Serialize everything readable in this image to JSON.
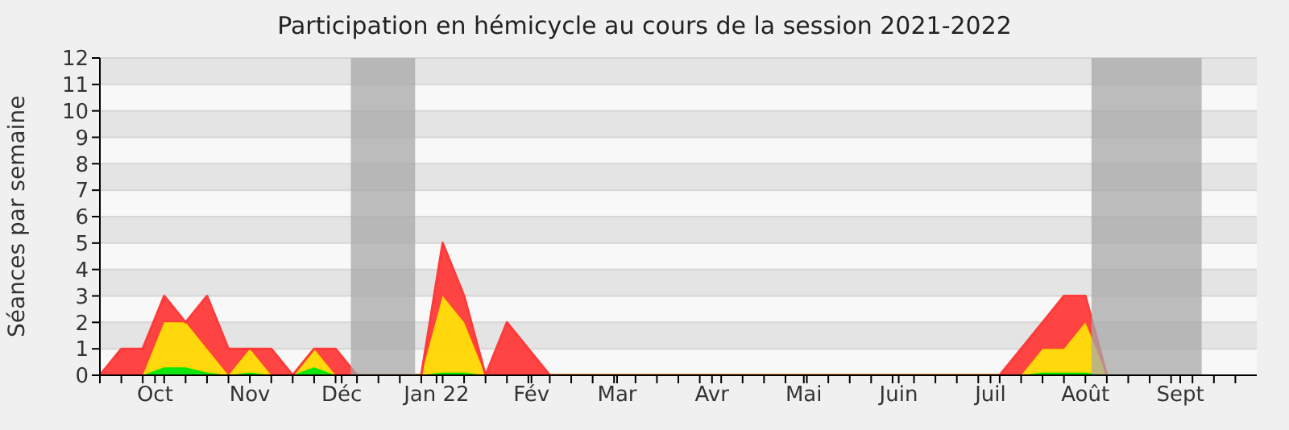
{
  "chart_data": {
    "type": "area",
    "title": "Participation en hémicycle au cours de la session 2021-2022",
    "ylabel": "Séances par semaine",
    "stacked": true,
    "grid": "y",
    "x": [
      "2021-09-13",
      "2021-09-20",
      "2021-09-27",
      "2021-10-04",
      "2021-10-11",
      "2021-10-18",
      "2021-10-25",
      "2021-11-01",
      "2021-11-08",
      "2021-11-15",
      "2021-11-22",
      "2021-11-29",
      "2021-12-06",
      "2021-12-27",
      "2022-01-03",
      "2022-01-10",
      "2022-01-17",
      "2022-01-24",
      "2022-01-31",
      "2022-02-07",
      "2022-07-04",
      "2022-07-11",
      "2022-07-18",
      "2022-07-25",
      "2022-08-01",
      "2022-08-08"
    ],
    "series": [
      {
        "color": "#00e600",
        "values": [
          0,
          0,
          0,
          0.3,
          0.3,
          0.1,
          0,
          0.1,
          0,
          0,
          0.3,
          0,
          0,
          0,
          0.1,
          0.1,
          0,
          0,
          0,
          0,
          0,
          0,
          0.1,
          0.1,
          0.1,
          0
        ]
      },
      {
        "color": "#ffd700",
        "values": [
          0,
          0,
          0,
          1.7,
          1.7,
          0.9,
          0,
          0.9,
          0,
          0,
          0.7,
          0,
          0,
          0,
          2.9,
          1.9,
          0,
          0,
          0,
          0,
          0,
          0,
          0.9,
          0.9,
          1.9,
          0
        ]
      },
      {
        "color": "#ff3a3a",
        "values": [
          0,
          1,
          1,
          1,
          0,
          2,
          1,
          0,
          1,
          0,
          0,
          1,
          0,
          0,
          2,
          1,
          0,
          2,
          1,
          0,
          0,
          1,
          1,
          2,
          1,
          0
        ]
      }
    ],
    "xlim": [
      "2021-09-13",
      "2022-09-26"
    ],
    "xticks": [
      {
        "value": "2021-10-01",
        "label": "Oct"
      },
      {
        "value": "2021-11-01",
        "label": "Nov"
      },
      {
        "value": "2021-12-01",
        "label": "Déc"
      },
      {
        "value": "2022-01-01",
        "label": "Jan 22"
      },
      {
        "value": "2022-02-01",
        "label": "Fév"
      },
      {
        "value": "2022-03-01",
        "label": "Mar"
      },
      {
        "value": "2022-04-01",
        "label": "Avr"
      },
      {
        "value": "2022-05-01",
        "label": "Mai"
      },
      {
        "value": "2022-06-01",
        "label": "Juin"
      },
      {
        "value": "2022-07-01",
        "label": "Juil"
      },
      {
        "value": "2022-08-01",
        "label": "Août"
      },
      {
        "value": "2022-09-01",
        "label": "Sept"
      },
      {
        "value": "2021-09-13",
        "label": null
      },
      {
        "value": "2021-09-20",
        "label": null
      },
      {
        "value": "2021-09-27",
        "label": null
      },
      {
        "value": "2021-10-04",
        "label": null
      },
      {
        "value": "2021-10-11",
        "label": null
      },
      {
        "value": "2021-10-18",
        "label": null
      },
      {
        "value": "2021-10-25",
        "label": null
      },
      {
        "value": "2021-11-08",
        "label": null
      },
      {
        "value": "2021-11-15",
        "label": null
      },
      {
        "value": "2021-11-22",
        "label": null
      },
      {
        "value": "2021-11-29",
        "label": null
      },
      {
        "value": "2021-12-06",
        "label": null
      },
      {
        "value": "2021-12-13",
        "label": null
      },
      {
        "value": "2021-12-20",
        "label": null
      },
      {
        "value": "2021-12-27",
        "label": null
      },
      {
        "value": "2022-01-03",
        "label": null
      },
      {
        "value": "2022-01-10",
        "label": null
      },
      {
        "value": "2022-01-17",
        "label": null
      },
      {
        "value": "2022-01-24",
        "label": null
      },
      {
        "value": "2022-01-31",
        "label": null
      },
      {
        "value": "2022-02-07",
        "label": null
      },
      {
        "value": "2022-02-14",
        "label": null
      },
      {
        "value": "2022-02-21",
        "label": null
      },
      {
        "value": "2022-02-28",
        "label": null
      },
      {
        "value": "2022-03-07",
        "label": null
      },
      {
        "value": "2022-03-14",
        "label": null
      },
      {
        "value": "2022-03-21",
        "label": null
      },
      {
        "value": "2022-03-28",
        "label": null
      },
      {
        "value": "2022-04-04",
        "label": null
      },
      {
        "value": "2022-04-11",
        "label": null
      },
      {
        "value": "2022-04-18",
        "label": null
      },
      {
        "value": "2022-04-25",
        "label": null
      },
      {
        "value": "2022-05-02",
        "label": null
      },
      {
        "value": "2022-05-09",
        "label": null
      },
      {
        "value": "2022-05-16",
        "label": null
      },
      {
        "value": "2022-05-23",
        "label": null
      },
      {
        "value": "2022-05-30",
        "label": null
      },
      {
        "value": "2022-06-06",
        "label": null
      },
      {
        "value": "2022-06-13",
        "label": null
      },
      {
        "value": "2022-06-20",
        "label": null
      },
      {
        "value": "2022-06-27",
        "label": null
      },
      {
        "value": "2022-07-04",
        "label": null
      },
      {
        "value": "2022-07-11",
        "label": null
      },
      {
        "value": "2022-07-18",
        "label": null
      },
      {
        "value": "2022-07-25",
        "label": null
      },
      {
        "value": "2022-08-08",
        "label": null
      },
      {
        "value": "2022-08-15",
        "label": null
      },
      {
        "value": "2022-08-22",
        "label": null
      },
      {
        "value": "2022-08-29",
        "label": null
      },
      {
        "value": "2022-09-05",
        "label": null
      },
      {
        "value": "2022-09-12",
        "label": null
      },
      {
        "value": "2022-09-19",
        "label": null
      }
    ],
    "ylim": [
      0,
      12
    ],
    "yticks": [
      0,
      1,
      2,
      3,
      4,
      5,
      6,
      7,
      8,
      9,
      10,
      11,
      12
    ],
    "bands": [
      {
        "axis": "x",
        "from": "2021-12-04",
        "to": "2021-12-25",
        "color": "#a8a8a8"
      },
      {
        "axis": "x",
        "from": "2022-08-03",
        "to": "2022-09-08",
        "color": "#a8a8a8"
      }
    ]
  }
}
